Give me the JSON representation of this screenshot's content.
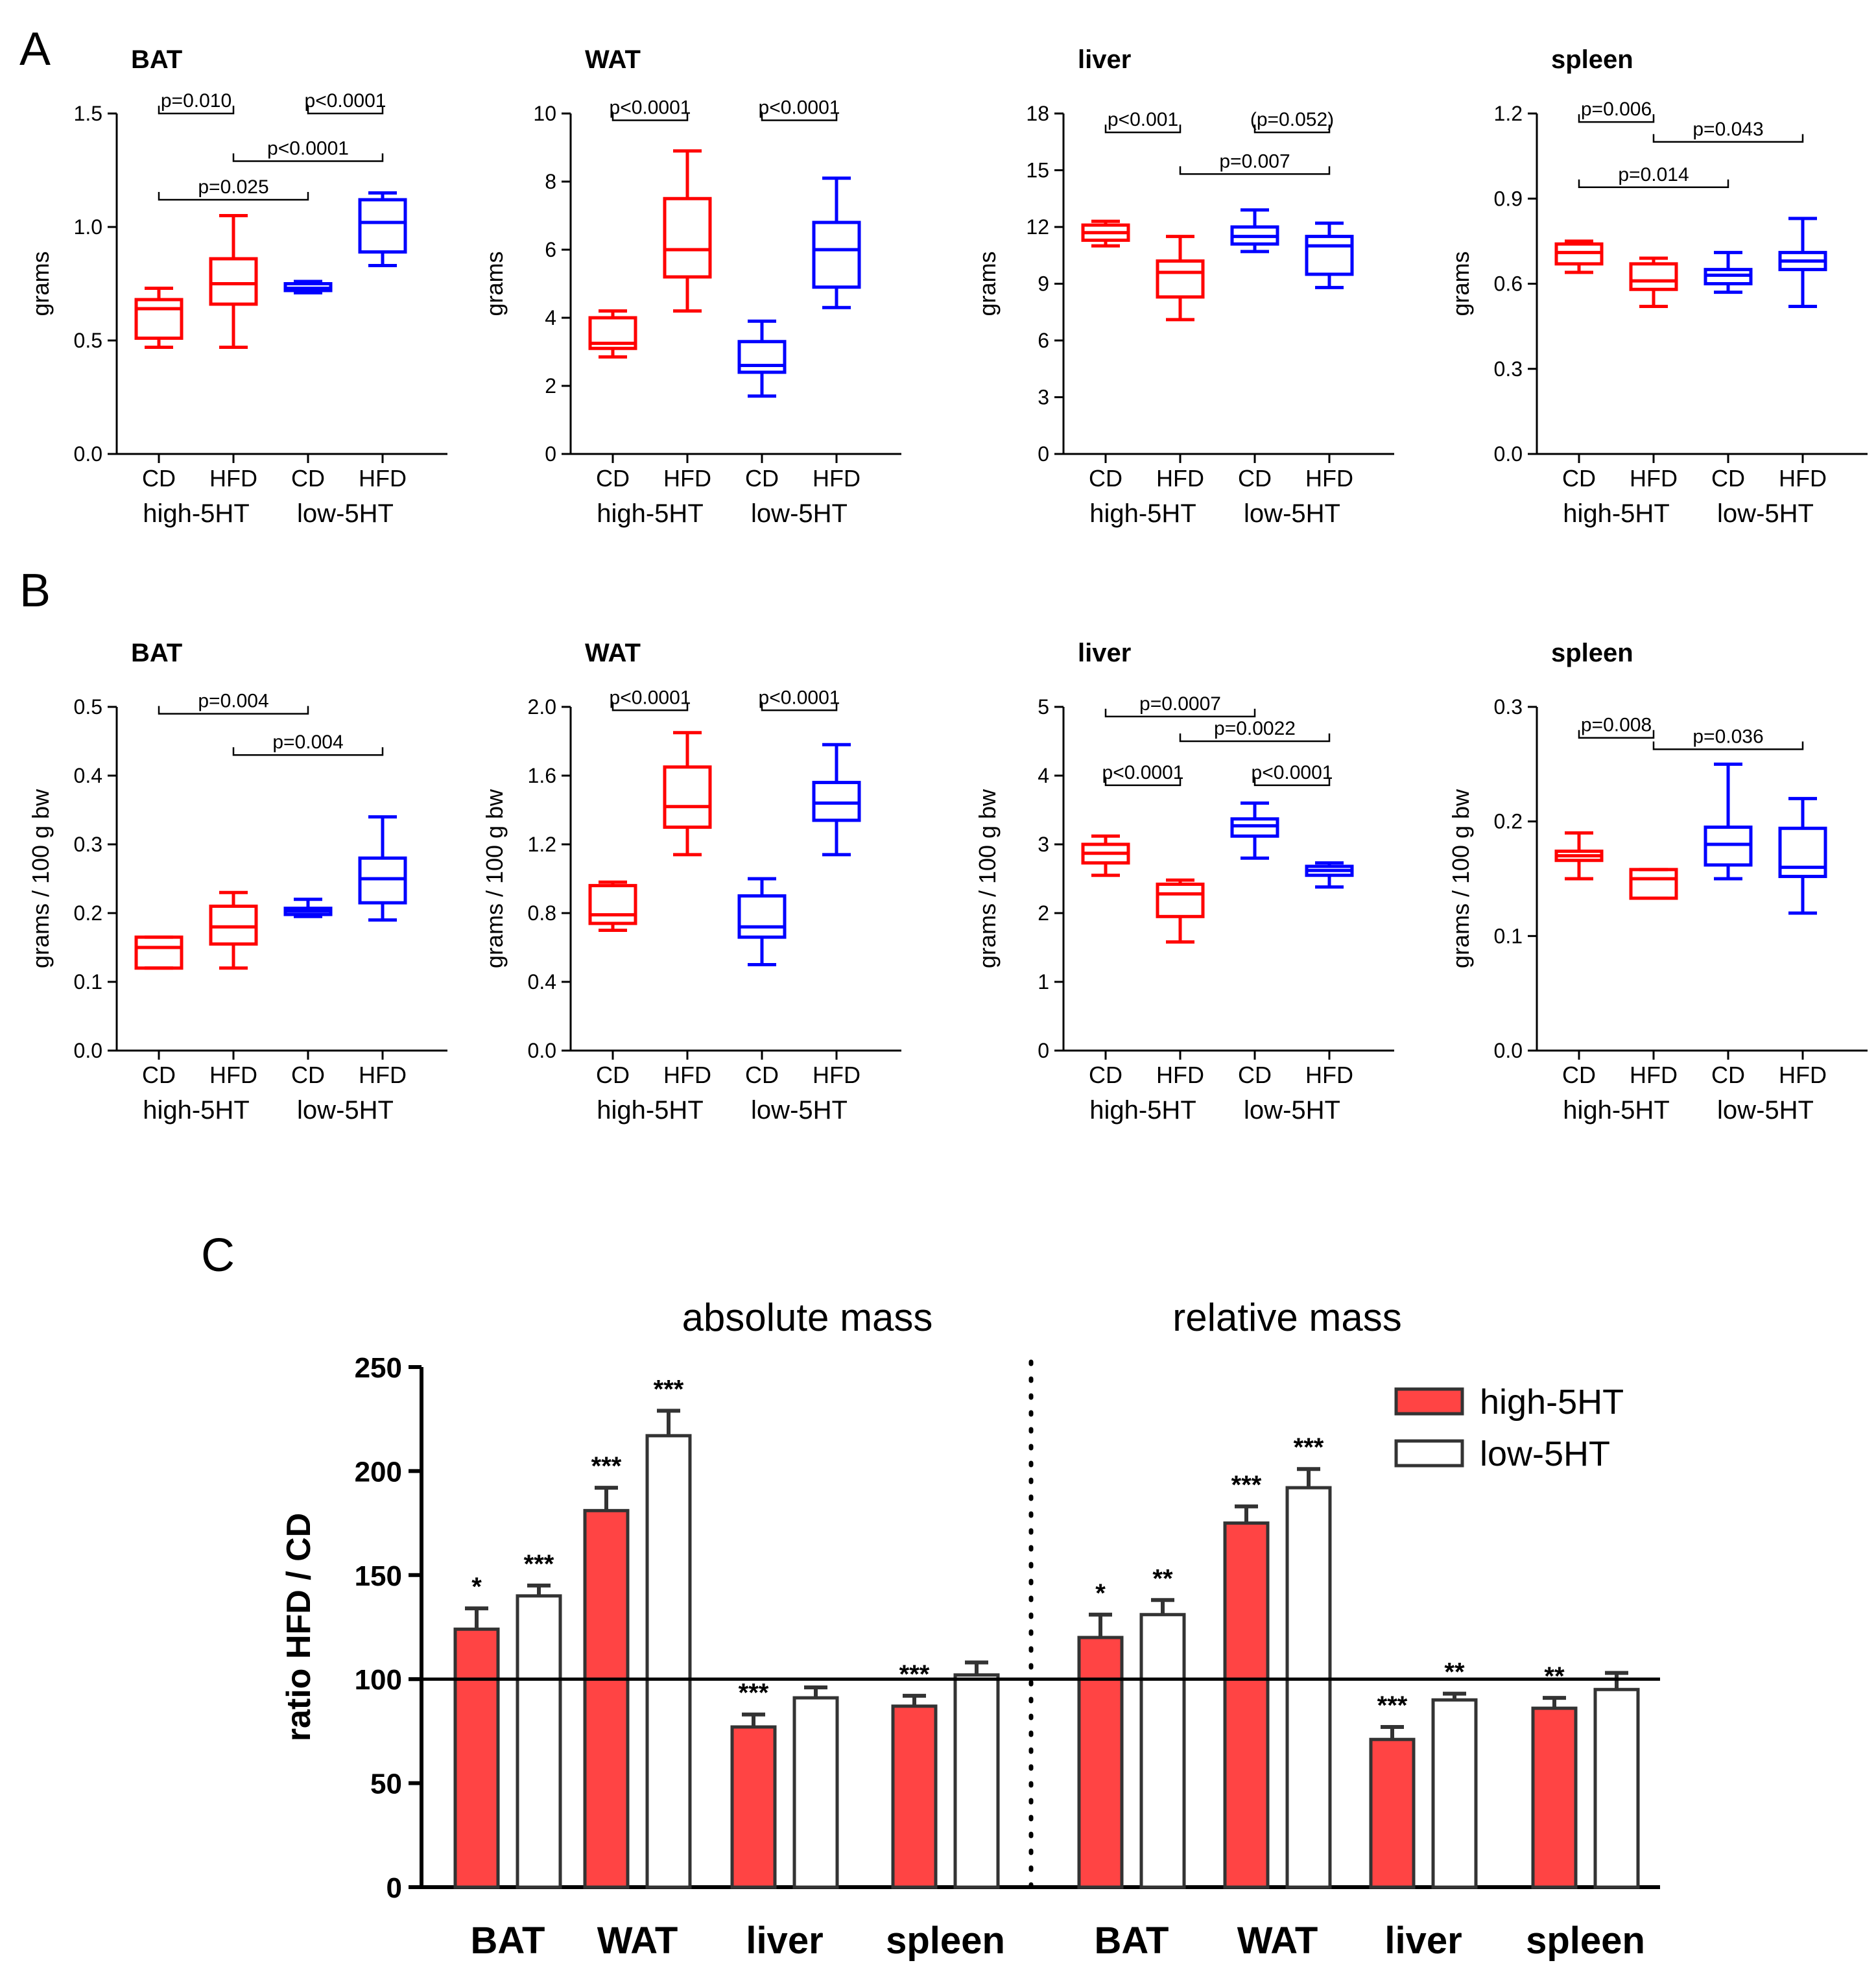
{
  "panel_labels": [
    "A",
    "B",
    "C"
  ],
  "colors": {
    "high": "#ff0000",
    "low": "#0000ff",
    "bar_high": "#ff4444",
    "bar_low": "#ffffff",
    "ink": "#000000"
  },
  "chart_data": [
    {
      "type": "box",
      "panel": "A",
      "title": "BAT",
      "ylabel": "grams",
      "ylim": [
        0,
        1.5
      ],
      "yticks": [
        "0.0",
        "0.5",
        "1.0",
        "1.5"
      ],
      "categories": [
        "CD",
        "HFD",
        "CD",
        "HFD"
      ],
      "groups": [
        "high-5HT",
        "low-5HT"
      ],
      "boxes": [
        {
          "group": "high-5HT",
          "cat": "CD",
          "min": 0.47,
          "q1": 0.51,
          "median": 0.64,
          "q3": 0.68,
          "max": 0.73
        },
        {
          "group": "high-5HT",
          "cat": "HFD",
          "min": 0.47,
          "q1": 0.66,
          "median": 0.75,
          "q3": 0.86,
          "max": 1.05
        },
        {
          "group": "low-5HT",
          "cat": "CD",
          "min": 0.71,
          "q1": 0.72,
          "median": 0.73,
          "q3": 0.75,
          "max": 0.76
        },
        {
          "group": "low-5HT",
          "cat": "HFD",
          "min": 0.83,
          "q1": 0.89,
          "median": 1.02,
          "q3": 1.12,
          "max": 1.15
        }
      ],
      "comparisons": [
        {
          "from": 0,
          "to": 1,
          "label": "p=0.010",
          "level": 1.5
        },
        {
          "from": 0,
          "to": 2,
          "label": "p=0.025",
          "level": 1.12
        },
        {
          "from": 1,
          "to": 3,
          "label": "p<0.0001",
          "level": 1.29
        },
        {
          "from": 2,
          "to": 3,
          "label": "p<0.0001",
          "level": 1.5
        }
      ]
    },
    {
      "type": "box",
      "panel": "A",
      "title": "WAT",
      "ylabel": "grams",
      "ylim": [
        0,
        10
      ],
      "yticks": [
        "0",
        "2",
        "4",
        "6",
        "8",
        "10"
      ],
      "categories": [
        "CD",
        "HFD",
        "CD",
        "HFD"
      ],
      "groups": [
        "high-5HT",
        "low-5HT"
      ],
      "boxes": [
        {
          "group": "high-5HT",
          "cat": "CD",
          "min": 2.85,
          "q1": 3.1,
          "median": 3.25,
          "q3": 4.0,
          "max": 4.2
        },
        {
          "group": "high-5HT",
          "cat": "HFD",
          "min": 4.2,
          "q1": 5.2,
          "median": 6.0,
          "q3": 7.5,
          "max": 8.9
        },
        {
          "group": "low-5HT",
          "cat": "CD",
          "min": 1.7,
          "q1": 2.4,
          "median": 2.6,
          "q3": 3.3,
          "max": 3.9
        },
        {
          "group": "low-5HT",
          "cat": "HFD",
          "min": 4.3,
          "q1": 4.9,
          "median": 6.0,
          "q3": 6.8,
          "max": 8.1
        }
      ],
      "comparisons": [
        {
          "from": 0,
          "to": 1,
          "label": "p<0.0001",
          "level": 9.8
        },
        {
          "from": 2,
          "to": 3,
          "label": "p<0.0001",
          "level": 9.8
        }
      ]
    },
    {
      "type": "box",
      "panel": "A",
      "title": "liver",
      "ylabel": "grams",
      "ylim": [
        0,
        18
      ],
      "yticks": [
        "0",
        "3",
        "6",
        "9",
        "12",
        "15",
        "18"
      ],
      "categories": [
        "CD",
        "HFD",
        "CD",
        "HFD"
      ],
      "groups": [
        "high-5HT",
        "low-5HT"
      ],
      "boxes": [
        {
          "group": "high-5HT",
          "cat": "CD",
          "min": 11.0,
          "q1": 11.3,
          "median": 11.7,
          "q3": 12.1,
          "max": 12.3
        },
        {
          "group": "high-5HT",
          "cat": "HFD",
          "min": 7.1,
          "q1": 8.3,
          "median": 9.6,
          "q3": 10.2,
          "max": 11.5
        },
        {
          "group": "low-5HT",
          "cat": "CD",
          "min": 10.7,
          "q1": 11.1,
          "median": 11.5,
          "q3": 12.0,
          "max": 12.9
        },
        {
          "group": "low-5HT",
          "cat": "HFD",
          "min": 8.8,
          "q1": 9.5,
          "median": 11.0,
          "q3": 11.5,
          "max": 12.2
        }
      ],
      "comparisons": [
        {
          "from": 0,
          "to": 1,
          "label": "p<0.001",
          "level": 17.0
        },
        {
          "from": 2,
          "to": 3,
          "label": "(p=0.052)",
          "level": 17.0
        },
        {
          "from": 1,
          "to": 3,
          "label": "p=0.007",
          "level": 14.8
        }
      ]
    },
    {
      "type": "box",
      "panel": "A",
      "title": "spleen",
      "ylabel": "grams",
      "ylim": [
        0,
        1.2
      ],
      "yticks": [
        "0.0",
        "0.3",
        "0.6",
        "0.9",
        "1.2"
      ],
      "categories": [
        "CD",
        "HFD",
        "CD",
        "HFD"
      ],
      "groups": [
        "high-5HT",
        "low-5HT"
      ],
      "boxes": [
        {
          "group": "high-5HT",
          "cat": "CD",
          "min": 0.64,
          "q1": 0.67,
          "median": 0.71,
          "q3": 0.74,
          "max": 0.75
        },
        {
          "group": "high-5HT",
          "cat": "HFD",
          "min": 0.52,
          "q1": 0.58,
          "median": 0.61,
          "q3": 0.67,
          "max": 0.69
        },
        {
          "group": "low-5HT",
          "cat": "CD",
          "min": 0.57,
          "q1": 0.6,
          "median": 0.63,
          "q3": 0.65,
          "max": 0.71
        },
        {
          "group": "low-5HT",
          "cat": "HFD",
          "min": 0.52,
          "q1": 0.65,
          "median": 0.68,
          "q3": 0.71,
          "max": 0.83
        }
      ],
      "comparisons": [
        {
          "from": 0,
          "to": 1,
          "label": "p=0.006",
          "level": 1.17
        },
        {
          "from": 1,
          "to": 3,
          "label": "p=0.043",
          "level": 1.1
        },
        {
          "from": 0,
          "to": 2,
          "label": "p=0.014",
          "level": 0.94
        }
      ]
    },
    {
      "type": "box",
      "panel": "B",
      "title": "BAT",
      "ylabel": "grams / 100 g bw",
      "ylim": [
        0,
        0.5
      ],
      "yticks": [
        "0.0",
        "0.1",
        "0.2",
        "0.3",
        "0.4",
        "0.5"
      ],
      "categories": [
        "CD",
        "HFD",
        "CD",
        "HFD"
      ],
      "groups": [
        "high-5HT",
        "low-5HT"
      ],
      "boxes": [
        {
          "group": "high-5HT",
          "cat": "CD",
          "min": 0.12,
          "q1": 0.12,
          "median": 0.15,
          "q3": 0.165,
          "max": 0.165
        },
        {
          "group": "high-5HT",
          "cat": "HFD",
          "min": 0.12,
          "q1": 0.155,
          "median": 0.18,
          "q3": 0.21,
          "max": 0.23
        },
        {
          "group": "low-5HT",
          "cat": "CD",
          "min": 0.195,
          "q1": 0.198,
          "median": 0.203,
          "q3": 0.207,
          "max": 0.22
        },
        {
          "group": "low-5HT",
          "cat": "HFD",
          "min": 0.19,
          "q1": 0.215,
          "median": 0.25,
          "q3": 0.28,
          "max": 0.34
        }
      ],
      "comparisons": [
        {
          "from": 0,
          "to": 2,
          "label": "p=0.004",
          "level": 0.49
        },
        {
          "from": 1,
          "to": 3,
          "label": "p=0.004",
          "level": 0.43
        }
      ]
    },
    {
      "type": "box",
      "panel": "B",
      "title": "WAT",
      "ylabel": "grams / 100 g bw",
      "ylim": [
        0,
        2.0
      ],
      "yticks": [
        "0.0",
        "0.4",
        "0.8",
        "1.2",
        "1.6",
        "2.0"
      ],
      "categories": [
        "CD",
        "HFD",
        "CD",
        "HFD"
      ],
      "groups": [
        "high-5HT",
        "low-5HT"
      ],
      "boxes": [
        {
          "group": "high-5HT",
          "cat": "CD",
          "min": 0.7,
          "q1": 0.74,
          "median": 0.79,
          "q3": 0.96,
          "max": 0.98
        },
        {
          "group": "high-5HT",
          "cat": "HFD",
          "min": 1.14,
          "q1": 1.3,
          "median": 1.42,
          "q3": 1.65,
          "max": 1.85
        },
        {
          "group": "low-5HT",
          "cat": "CD",
          "min": 0.5,
          "q1": 0.66,
          "median": 0.72,
          "q3": 0.9,
          "max": 1.0
        },
        {
          "group": "low-5HT",
          "cat": "HFD",
          "min": 1.14,
          "q1": 1.34,
          "median": 1.44,
          "q3": 1.56,
          "max": 1.78
        }
      ],
      "comparisons": [
        {
          "from": 0,
          "to": 1,
          "label": "p<0.0001",
          "level": 1.98
        },
        {
          "from": 2,
          "to": 3,
          "label": "p<0.0001",
          "level": 1.98
        }
      ]
    },
    {
      "type": "box",
      "panel": "B",
      "title": "liver",
      "ylabel": "grams / 100 g bw",
      "ylim": [
        0,
        5
      ],
      "yticks": [
        "0",
        "1",
        "2",
        "3",
        "4",
        "5"
      ],
      "categories": [
        "CD",
        "HFD",
        "CD",
        "HFD"
      ],
      "groups": [
        "high-5HT",
        "low-5HT"
      ],
      "boxes": [
        {
          "group": "high-5HT",
          "cat": "CD",
          "min": 2.55,
          "q1": 2.73,
          "median": 2.87,
          "q3": 3.0,
          "max": 3.12
        },
        {
          "group": "high-5HT",
          "cat": "HFD",
          "min": 1.58,
          "q1": 1.95,
          "median": 2.28,
          "q3": 2.42,
          "max": 2.48
        },
        {
          "group": "low-5HT",
          "cat": "CD",
          "min": 2.8,
          "q1": 3.12,
          "median": 3.27,
          "q3": 3.37,
          "max": 3.6
        },
        {
          "group": "low-5HT",
          "cat": "HFD",
          "min": 2.38,
          "q1": 2.55,
          "median": 2.62,
          "q3": 2.68,
          "max": 2.73
        }
      ],
      "comparisons": [
        {
          "from": 0,
          "to": 2,
          "label": "p=0.0007",
          "level": 4.86
        },
        {
          "from": 1,
          "to": 3,
          "label": "p=0.0022",
          "level": 4.5
        },
        {
          "from": 0,
          "to": 1,
          "label": "p<0.0001",
          "level": 3.86
        },
        {
          "from": 2,
          "to": 3,
          "label": "p<0.0001",
          "level": 3.86
        }
      ]
    },
    {
      "type": "box",
      "panel": "B",
      "title": "spleen",
      "ylabel": "grams / 100 g bw",
      "ylim": [
        0,
        0.3
      ],
      "yticks": [
        "0.0",
        "0.1",
        "0.2",
        "0.3"
      ],
      "categories": [
        "CD",
        "HFD",
        "CD",
        "HFD"
      ],
      "groups": [
        "high-5HT",
        "low-5HT"
      ],
      "boxes": [
        {
          "group": "high-5HT",
          "cat": "CD",
          "min": 0.15,
          "q1": 0.166,
          "median": 0.17,
          "q3": 0.174,
          "max": 0.19
        },
        {
          "group": "high-5HT",
          "cat": "HFD",
          "min": 0.133,
          "q1": 0.133,
          "median": 0.15,
          "q3": 0.158,
          "max": 0.158
        },
        {
          "group": "low-5HT",
          "cat": "CD",
          "min": 0.15,
          "q1": 0.162,
          "median": 0.18,
          "q3": 0.195,
          "max": 0.25
        },
        {
          "group": "low-5HT",
          "cat": "HFD",
          "min": 0.12,
          "q1": 0.152,
          "median": 0.16,
          "q3": 0.194,
          "max": 0.22
        }
      ],
      "comparisons": [
        {
          "from": 0,
          "to": 1,
          "label": "p=0.008",
          "level": 0.273
        },
        {
          "from": 1,
          "to": 3,
          "label": "p=0.036",
          "level": 0.263
        }
      ]
    },
    {
      "type": "bar",
      "panel": "C",
      "ylabel": "ratio HFD / CD",
      "ylim": [
        0,
        250
      ],
      "yticks": [
        "0",
        "50",
        "100",
        "150",
        "200",
        "250"
      ],
      "reference_line": 100,
      "sections": [
        "absolute mass",
        "relative mass"
      ],
      "categories": [
        "BAT",
        "WAT",
        "liver",
        "spleen",
        "BAT",
        "WAT",
        "liver",
        "spleen"
      ],
      "legend": [
        "high-5HT",
        "low-5HT"
      ],
      "series": [
        {
          "name": "high-5HT",
          "values": [
            124,
            181,
            77,
            87,
            120,
            175,
            71,
            86
          ],
          "errors": [
            10,
            11,
            6,
            5,
            11,
            8,
            6,
            5
          ],
          "stars": [
            "*",
            "***",
            "***",
            "***",
            "*",
            "***",
            "***",
            "**"
          ]
        },
        {
          "name": "low-5HT",
          "values": [
            140,
            217,
            91,
            102,
            131,
            192,
            90,
            95
          ],
          "errors": [
            5,
            12,
            5,
            6,
            7,
            9,
            3,
            8
          ],
          "stars": [
            "***",
            "***",
            "",
            "",
            "**",
            "***",
            "**",
            ""
          ]
        }
      ]
    }
  ]
}
